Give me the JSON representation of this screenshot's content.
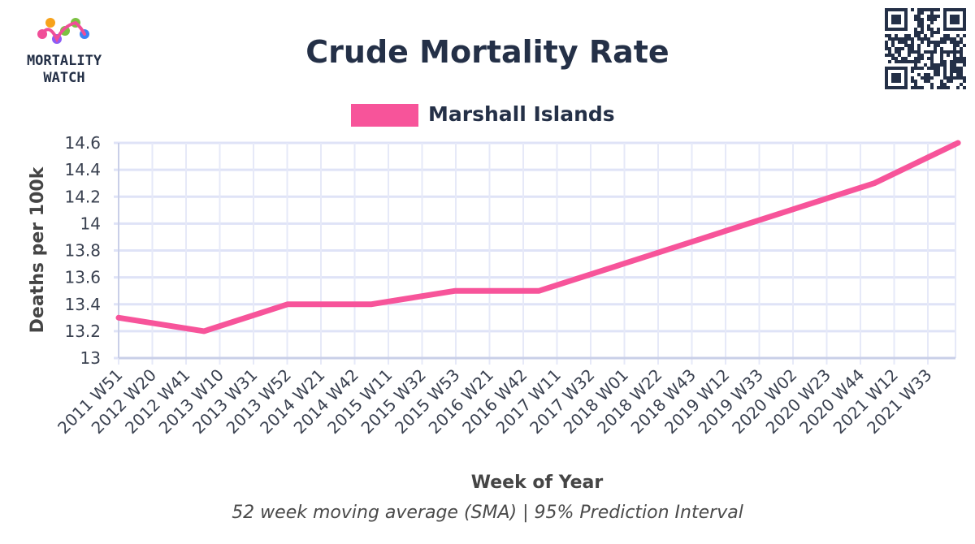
{
  "branding": {
    "logo_line1": "MORTALITY",
    "logo_line2": "WATCH",
    "logo_colors": [
      "#f04e98",
      "#f7a21b",
      "#7cc142",
      "#3b82f6",
      "#8b5cf6"
    ]
  },
  "chart_data": {
    "type": "line",
    "title": "Crude Mortality Rate",
    "xlabel": "Week of Year",
    "ylabel": "Deaths per 100k",
    "caption": "52 week moving average (SMA) | 95% Prediction Interval",
    "ylim": [
      13,
      14.6
    ],
    "y_ticks": [
      "13",
      "13.2",
      "13.4",
      "13.6",
      "13.8",
      "14",
      "14.2",
      "14.4",
      "14.6"
    ],
    "x_tick_labels": [
      "2011 W51",
      "2012 W20",
      "2012 W41",
      "2013 W10",
      "2013 W31",
      "2013 W52",
      "2014 W21",
      "2014 W42",
      "2015 W11",
      "2015 W32",
      "2015 W53",
      "2016 W21",
      "2016 W42",
      "2017 W11",
      "2017 W32",
      "2018 W01",
      "2018 W22",
      "2018 W43",
      "2019 W12",
      "2019 W33",
      "2020 W02",
      "2020 W23",
      "2020 W44",
      "2021 W12",
      "2021 W33"
    ],
    "grid": true,
    "legend_position": "top-center",
    "series": [
      {
        "name": "Marshall Islands",
        "color": "#f7549a",
        "points": [
          {
            "x": "2011 W51",
            "y": 13.3
          },
          {
            "x": "2012 W52",
            "y": 13.2
          },
          {
            "x": "2013 W52",
            "y": 13.4
          },
          {
            "x": "2014 W52",
            "y": 13.4
          },
          {
            "x": "2015 W52",
            "y": 13.5
          },
          {
            "x": "2016 W52",
            "y": 13.5
          },
          {
            "x": "2017 W52",
            "y": 13.7
          },
          {
            "x": "2018 W52",
            "y": 13.9
          },
          {
            "x": "2019 W52",
            "y": 14.1
          },
          {
            "x": "2020 W52",
            "y": 14.3
          },
          {
            "x": "2021 W52",
            "y": 14.6
          }
        ]
      }
    ]
  }
}
